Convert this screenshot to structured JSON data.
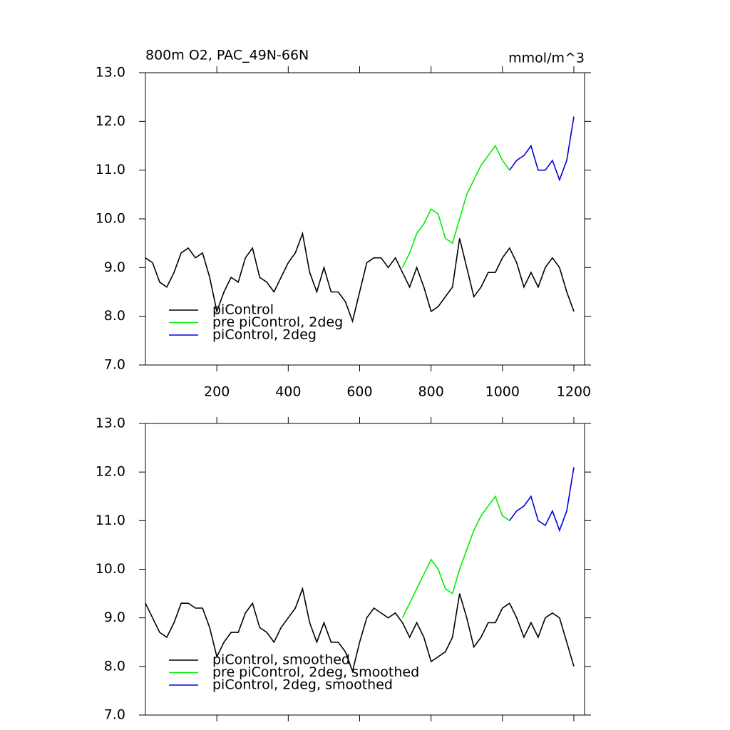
{
  "chart_data": [
    {
      "type": "line",
      "title": "800m O2, PAC_49N-66N",
      "units": "mmol/m^3",
      "x": [
        0,
        20,
        40,
        60,
        80,
        100,
        120,
        140,
        160,
        180,
        200,
        220,
        240,
        260,
        280,
        300,
        320,
        340,
        360,
        380,
        400,
        420,
        440,
        460,
        480,
        500,
        520,
        540,
        560,
        580,
        600,
        620,
        640,
        660,
        680,
        700,
        720,
        740,
        760,
        780,
        800,
        820,
        840,
        860,
        880,
        900,
        920,
        940,
        960,
        980,
        1000,
        1020,
        1040,
        1060,
        1080,
        1100,
        1120,
        1140,
        1160,
        1180,
        1200
      ],
      "series": [
        {
          "name": "piControl",
          "color": "#000000",
          "values": [
            9.2,
            9.1,
            8.7,
            8.6,
            8.9,
            9.3,
            9.4,
            9.2,
            9.3,
            8.8,
            8.1,
            8.5,
            8.8,
            8.7,
            9.2,
            9.4,
            8.8,
            8.7,
            8.5,
            8.8,
            9.1,
            9.3,
            9.7,
            8.9,
            8.5,
            9.0,
            8.5,
            8.5,
            8.3,
            7.9,
            8.5,
            9.1,
            9.2,
            9.2,
            9.0,
            9.2,
            8.9,
            8.6,
            9.0,
            8.6,
            8.1,
            8.2,
            8.4,
            8.6,
            9.6,
            9.0,
            8.4,
            8.6,
            8.9,
            8.9,
            9.2,
            9.4,
            9.1,
            8.6,
            8.9,
            8.6,
            9.0,
            9.2,
            9.0,
            8.5,
            8.1
          ]
        },
        {
          "name": "pre piControl, 2deg",
          "color": "#00ee00",
          "values": [
            null,
            null,
            null,
            null,
            null,
            null,
            null,
            null,
            null,
            null,
            null,
            null,
            null,
            null,
            null,
            null,
            null,
            null,
            null,
            null,
            null,
            null,
            null,
            null,
            null,
            null,
            null,
            null,
            null,
            null,
            null,
            null,
            null,
            null,
            null,
            null,
            9.0,
            9.3,
            9.7,
            9.9,
            10.2,
            10.1,
            9.6,
            9.5,
            10.0,
            10.5,
            10.8,
            11.1,
            11.3,
            11.5,
            11.2,
            11.0,
            null,
            null,
            null,
            null,
            null,
            null,
            null,
            null,
            null
          ]
        },
        {
          "name": "piControl, 2deg",
          "color": "#0000dd",
          "values": [
            null,
            null,
            null,
            null,
            null,
            null,
            null,
            null,
            null,
            null,
            null,
            null,
            null,
            null,
            null,
            null,
            null,
            null,
            null,
            null,
            null,
            null,
            null,
            null,
            null,
            null,
            null,
            null,
            null,
            null,
            null,
            null,
            null,
            null,
            null,
            null,
            null,
            null,
            null,
            null,
            null,
            null,
            null,
            null,
            null,
            null,
            null,
            null,
            null,
            null,
            null,
            11.0,
            11.2,
            11.3,
            11.5,
            11.0,
            11.0,
            11.2,
            10.8,
            11.2,
            12.1
          ]
        }
      ],
      "xlim": [
        0,
        1230
      ],
      "xticks": [
        200,
        400,
        600,
        800,
        1000,
        1200
      ],
      "show_xtick_labels": true,
      "ylim": [
        7,
        13
      ],
      "yticks": [
        {
          "value": 7,
          "label": "7.0"
        },
        {
          "value": 8,
          "label": "8.0"
        },
        {
          "value": 9,
          "label": "9.0"
        },
        {
          "value": 10,
          "label": "10.0"
        },
        {
          "value": 11,
          "label": "11.0"
        },
        {
          "value": 12,
          "label": "12.0"
        },
        {
          "value": 13,
          "label": "13.0"
        }
      ],
      "legend": "lower left"
    },
    {
      "type": "line",
      "x": [
        0,
        20,
        40,
        60,
        80,
        100,
        120,
        140,
        160,
        180,
        200,
        220,
        240,
        260,
        280,
        300,
        320,
        340,
        360,
        380,
        400,
        420,
        440,
        460,
        480,
        500,
        520,
        540,
        560,
        580,
        600,
        620,
        640,
        660,
        680,
        700,
        720,
        740,
        760,
        780,
        800,
        820,
        840,
        860,
        880,
        900,
        920,
        940,
        960,
        980,
        1000,
        1020,
        1040,
        1060,
        1080,
        1100,
        1120,
        1140,
        1160,
        1180,
        1200
      ],
      "series": [
        {
          "name": "piControl, smoothed",
          "color": "#000000",
          "values": [
            9.3,
            9.0,
            8.7,
            8.6,
            8.9,
            9.3,
            9.3,
            9.2,
            9.2,
            8.8,
            8.2,
            8.5,
            8.7,
            8.7,
            9.1,
            9.3,
            8.8,
            8.7,
            8.5,
            8.8,
            9.0,
            9.2,
            9.6,
            8.9,
            8.5,
            8.9,
            8.5,
            8.5,
            8.3,
            7.9,
            8.5,
            9.0,
            9.2,
            9.1,
            9.0,
            9.1,
            8.9,
            8.6,
            8.9,
            8.6,
            8.1,
            8.2,
            8.3,
            8.6,
            9.5,
            9.0,
            8.4,
            8.6,
            8.9,
            8.9,
            9.2,
            9.3,
            9.0,
            8.6,
            8.9,
            8.6,
            9.0,
            9.1,
            9.0,
            8.5,
            8.0
          ]
        },
        {
          "name": "pre piControl, 2deg, smoothed",
          "color": "#00ee00",
          "values": [
            null,
            null,
            null,
            null,
            null,
            null,
            null,
            null,
            null,
            null,
            null,
            null,
            null,
            null,
            null,
            null,
            null,
            null,
            null,
            null,
            null,
            null,
            null,
            null,
            null,
            null,
            null,
            null,
            null,
            null,
            null,
            null,
            null,
            null,
            null,
            null,
            9.0,
            9.3,
            9.6,
            9.9,
            10.2,
            10.0,
            9.6,
            9.5,
            10.0,
            10.4,
            10.8,
            11.1,
            11.3,
            11.5,
            11.1,
            11.0,
            null,
            null,
            null,
            null,
            null,
            null,
            null,
            null,
            null
          ]
        },
        {
          "name": "piControl, 2deg, smoothed",
          "color": "#0000dd",
          "values": [
            null,
            null,
            null,
            null,
            null,
            null,
            null,
            null,
            null,
            null,
            null,
            null,
            null,
            null,
            null,
            null,
            null,
            null,
            null,
            null,
            null,
            null,
            null,
            null,
            null,
            null,
            null,
            null,
            null,
            null,
            null,
            null,
            null,
            null,
            null,
            null,
            null,
            null,
            null,
            null,
            null,
            null,
            null,
            null,
            null,
            null,
            null,
            null,
            null,
            null,
            null,
            11.0,
            11.2,
            11.3,
            11.5,
            11.0,
            10.9,
            11.2,
            10.8,
            11.2,
            12.1
          ]
        }
      ],
      "xlim": [
        0,
        1230
      ],
      "xticks": [
        200,
        400,
        600,
        800,
        1000,
        1200
      ],
      "show_xtick_labels": false,
      "ylim": [
        7,
        13
      ],
      "yticks": [
        {
          "value": 7,
          "label": "7.0"
        },
        {
          "value": 8,
          "label": "8.0"
        },
        {
          "value": 9,
          "label": "9.0"
        },
        {
          "value": 10,
          "label": "10.0"
        },
        {
          "value": 11,
          "label": "11.0"
        },
        {
          "value": 12,
          "label": "12.0"
        },
        {
          "value": 13,
          "label": "13.0"
        }
      ],
      "legend": "lower left"
    }
  ]
}
